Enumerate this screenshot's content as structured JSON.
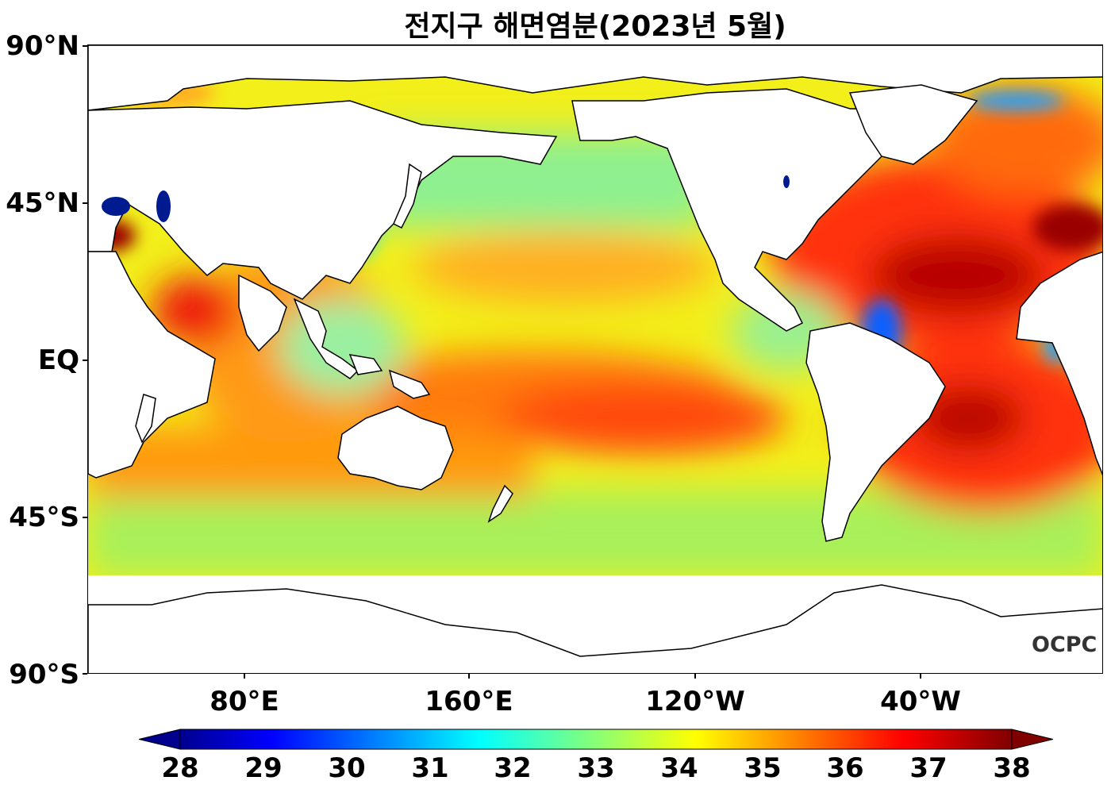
{
  "title": "전지구 해면염분(2023년 5월)",
  "y_axis": {
    "ticks": [
      "90°N",
      "45°N",
      "EQ",
      "45°S",
      "90°S"
    ]
  },
  "x_axis": {
    "ticks": [
      "80°E",
      "160°E",
      "120°W",
      "40°W"
    ]
  },
  "colorbar": {
    "ticks": [
      "28",
      "29",
      "30",
      "31",
      "32",
      "33",
      "34",
      "35",
      "36",
      "37",
      "38"
    ],
    "min": 28,
    "max": 38,
    "extend": "both",
    "colormap": "jet"
  },
  "logo": "OCPC"
}
